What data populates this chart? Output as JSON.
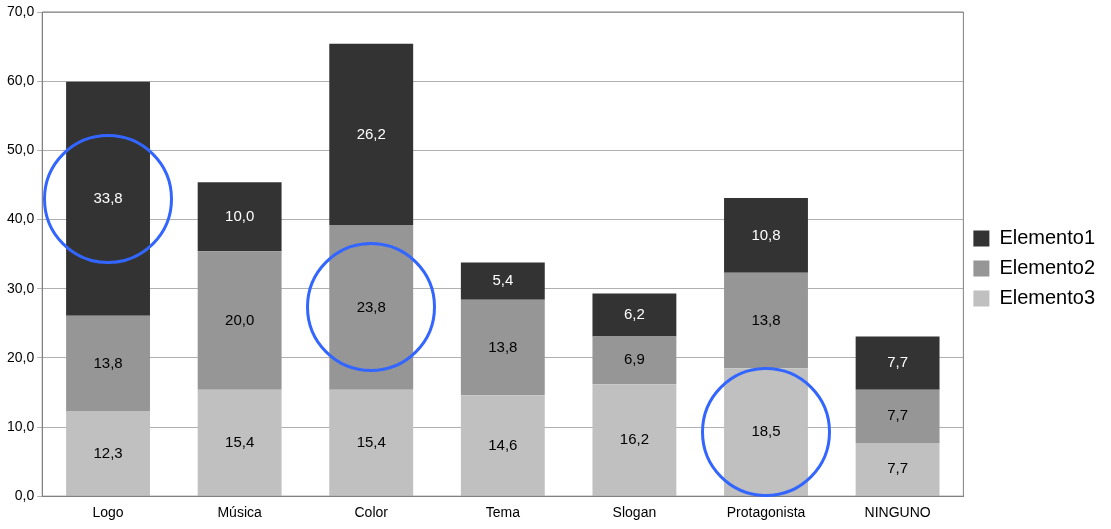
{
  "chart_data": {
    "type": "bar",
    "stacked": true,
    "categories": [
      "Logo",
      "Música",
      "Color",
      "Tema",
      "Slogan",
      "Protagonista",
      "NINGUNO"
    ],
    "series": [
      {
        "name": "Elemento3",
        "color": "#c0c0c0",
        "values": [
          12.3,
          15.4,
          15.4,
          14.6,
          16.2,
          18.5,
          7.7
        ],
        "value_labels": [
          "12,3",
          "15,4",
          "15,4",
          "14,6",
          "16,2",
          "18,5",
          "7,7"
        ]
      },
      {
        "name": "Elemento2",
        "color": "#969696",
        "values": [
          13.8,
          20.0,
          23.8,
          13.8,
          6.9,
          13.8,
          7.7
        ],
        "value_labels": [
          "13,8",
          "20,0",
          "23,8",
          "13,8",
          "6,9",
          "13,8",
          "7,7"
        ]
      },
      {
        "name": "Elemento1",
        "color": "#333333",
        "values": [
          33.8,
          10.0,
          26.2,
          5.4,
          6.2,
          10.8,
          7.7
        ],
        "value_labels": [
          "33,8",
          "10,0",
          "26,2",
          "5,4",
          "6,2",
          "10,8",
          "7,7"
        ]
      }
    ],
    "ylim": [
      0,
      70
    ],
    "yticks": [
      {
        "value": 0,
        "label": "0,0"
      },
      {
        "value": 10,
        "label": "10,0"
      },
      {
        "value": 20,
        "label": "20,0"
      },
      {
        "value": 30,
        "label": "30,0"
      },
      {
        "value": 40,
        "label": "40,0"
      },
      {
        "value": 50,
        "label": "50,0"
      },
      {
        "value": 60,
        "label": "60,0"
      },
      {
        "value": 70,
        "label": "70,0"
      }
    ],
    "grid": "y",
    "legend": "right"
  }
}
